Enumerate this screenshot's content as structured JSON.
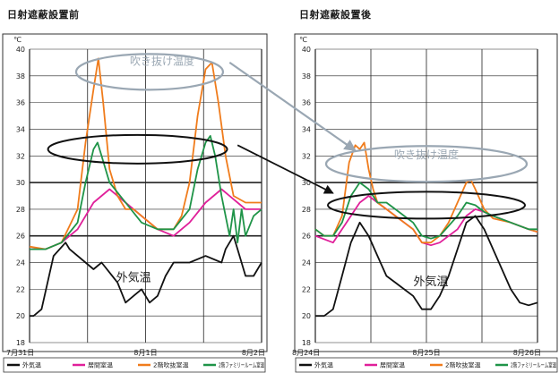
{
  "chart_data": [
    {
      "type": "line",
      "title": "日射遮蔽設置前",
      "y_unit": "℃",
      "ylim": [
        18,
        40
      ],
      "y_ticks": [
        "40",
        "38",
        "36",
        "34",
        "32",
        "30",
        "28",
        "26",
        "24",
        "22",
        "20",
        "18"
      ],
      "x_ticks": [
        "7月31日",
        "8月1日",
        "8月2日"
      ],
      "series": [
        {
          "name": "外気温",
          "color": "#111111",
          "points": [
            [
              0,
              20
            ],
            [
              0.5,
              20
            ],
            [
              1.5,
              20.5
            ],
            [
              3,
              24.5
            ],
            [
              4.5,
              25.5
            ],
            [
              5,
              25
            ],
            [
              7,
              24
            ],
            [
              8,
              23.5
            ],
            [
              9,
              24
            ],
            [
              11,
              22.5
            ],
            [
              12,
              21
            ],
            [
              13,
              21.5
            ],
            [
              14,
              22
            ],
            [
              15,
              21
            ],
            [
              16,
              21.5
            ],
            [
              17,
              23
            ],
            [
              18,
              24
            ],
            [
              20,
              24
            ],
            [
              22,
              24.5
            ],
            [
              24,
              24
            ],
            [
              24.5,
              25
            ],
            [
              25.5,
              26
            ],
            [
              26,
              25
            ],
            [
              27,
              23
            ],
            [
              28,
              23
            ],
            [
              29,
              24
            ]
          ]
        },
        {
          "name": "居間室温",
          "color": "#e0209a",
          "points": [
            [
              0,
              25
            ],
            [
              2,
              25
            ],
            [
              4,
              25.5
            ],
            [
              6,
              26.5
            ],
            [
              8,
              28.5
            ],
            [
              10,
              29.5
            ],
            [
              12,
              28.5
            ],
            [
              14,
              27.5
            ],
            [
              16,
              26.5
            ],
            [
              18,
              26
            ],
            [
              20,
              27
            ],
            [
              22,
              28.5
            ],
            [
              24,
              29.5
            ],
            [
              26,
              28.5
            ],
            [
              27,
              28
            ],
            [
              29,
              28
            ]
          ]
        },
        {
          "name": "2階吹抜室温",
          "color": "#f07c1c",
          "points": [
            [
              0,
              25.2
            ],
            [
              2,
              25
            ],
            [
              4,
              25.5
            ],
            [
              6,
              28
            ],
            [
              7,
              33
            ],
            [
              8,
              37
            ],
            [
              8.6,
              39.3
            ],
            [
              9.2,
              36
            ],
            [
              10,
              31
            ],
            [
              11,
              29
            ],
            [
              12,
              28
            ],
            [
              13,
              28
            ],
            [
              14,
              27.5
            ],
            [
              16,
              26.5
            ],
            [
              18,
              26.5
            ],
            [
              19,
              27.5
            ],
            [
              20,
              30
            ],
            [
              21,
              35
            ],
            [
              22,
              38.5
            ],
            [
              22.8,
              39
            ],
            [
              23.6,
              36
            ],
            [
              24.5,
              32
            ],
            [
              25.5,
              29
            ],
            [
              27,
              28.5
            ],
            [
              29,
              28.5
            ]
          ]
        },
        {
          "name": "2階ファミリールーム室温",
          "color": "#1f9448",
          "points": [
            [
              0,
              25
            ],
            [
              2,
              25
            ],
            [
              4,
              25.5
            ],
            [
              6,
              27
            ],
            [
              7,
              30
            ],
            [
              8,
              32.5
            ],
            [
              8.5,
              33
            ],
            [
              9,
              32
            ],
            [
              10,
              30
            ],
            [
              12,
              28.5
            ],
            [
              14,
              27
            ],
            [
              16,
              26.5
            ],
            [
              18,
              26.5
            ],
            [
              20,
              28
            ],
            [
              21,
              31
            ],
            [
              22,
              33
            ],
            [
              22.6,
              33.5
            ],
            [
              23.2,
              32
            ],
            [
              24,
              29
            ],
            [
              25,
              26
            ],
            [
              25.5,
              28
            ],
            [
              26,
              25.5
            ],
            [
              26.5,
              28
            ],
            [
              27,
              26
            ],
            [
              28,
              27.5
            ],
            [
              29,
              28
            ]
          ]
        }
      ],
      "annotations": [
        {
          "text": "吹き抜け温度",
          "color": "#9aa7b3",
          "style": "ellipse"
        }
      ]
    },
    {
      "type": "line",
      "title": "日射遮蔽設置後",
      "y_unit": "℃",
      "ylim": [
        18,
        40
      ],
      "y_ticks": [
        "40",
        "38",
        "36",
        "34",
        "32",
        "30",
        "28",
        "26",
        "24",
        "22",
        "20",
        "18"
      ],
      "x_ticks": [
        "8月24日",
        "8月25日",
        "8月26日"
      ],
      "series": [
        {
          "name": "外気温",
          "color": "#111111",
          "points": [
            [
              0,
              20
            ],
            [
              1,
              20
            ],
            [
              2,
              20.5
            ],
            [
              3,
              23
            ],
            [
              4,
              25.5
            ],
            [
              5,
              27
            ],
            [
              6,
              26
            ],
            [
              7,
              24.5
            ],
            [
              8,
              23
            ],
            [
              9,
              22.5
            ],
            [
              10,
              22
            ],
            [
              11,
              21.5
            ],
            [
              12,
              20.5
            ],
            [
              13,
              20.5
            ],
            [
              14,
              21.5
            ],
            [
              15,
              23
            ],
            [
              16,
              25
            ],
            [
              17,
              27
            ],
            [
              18,
              27.5
            ],
            [
              19,
              26.5
            ],
            [
              20,
              25
            ],
            [
              21,
              23.5
            ],
            [
              22,
              22
            ],
            [
              23,
              21
            ],
            [
              24,
              20.8
            ],
            [
              25,
              21
            ]
          ]
        },
        {
          "name": "居間室温",
          "color": "#e0209a",
          "points": [
            [
              0,
              26
            ],
            [
              2,
              25.5
            ],
            [
              3,
              26.5
            ],
            [
              4,
              27.5
            ],
            [
              5,
              28.5
            ],
            [
              6,
              29
            ],
            [
              7,
              28.5
            ],
            [
              8,
              28
            ],
            [
              9,
              27.5
            ],
            [
              10,
              27
            ],
            [
              11,
              26.5
            ],
            [
              12,
              25.5
            ],
            [
              13,
              25.3
            ],
            [
              14,
              25.5
            ],
            [
              16,
              26.5
            ],
            [
              17,
              27.5
            ],
            [
              18,
              28
            ],
            [
              19,
              27.8
            ],
            [
              20,
              27.5
            ],
            [
              22,
              27
            ],
            [
              24,
              26.5
            ],
            [
              25,
              26.3
            ]
          ]
        },
        {
          "name": "2階吹抜室温",
          "color": "#f07c1c",
          "points": [
            [
              0,
              26.5
            ],
            [
              1,
              26
            ],
            [
              2,
              26
            ],
            [
              3,
              27.5
            ],
            [
              3.8,
              31.5
            ],
            [
              4.5,
              32.8
            ],
            [
              5,
              32.5
            ],
            [
              5.5,
              33
            ],
            [
              6,
              31
            ],
            [
              6.5,
              29.5
            ],
            [
              7,
              28.5
            ],
            [
              8,
              28
            ],
            [
              9,
              27.5
            ],
            [
              10,
              27
            ],
            [
              11,
              26.5
            ],
            [
              12,
              25.5
            ],
            [
              13,
              25.5
            ],
            [
              14,
              26
            ],
            [
              15,
              27
            ],
            [
              16,
              28.5
            ],
            [
              17,
              30
            ],
            [
              17.5,
              30.2
            ],
            [
              18,
              29.5
            ],
            [
              19,
              28
            ],
            [
              20,
              27.3
            ],
            [
              22,
              27
            ],
            [
              24,
              26.5
            ],
            [
              25,
              26.3
            ]
          ]
        },
        {
          "name": "2階ファミリールーム室温",
          "color": "#1f9448",
          "points": [
            [
              0,
              26.5
            ],
            [
              1,
              26
            ],
            [
              2,
              26
            ],
            [
              3,
              27
            ],
            [
              4,
              29
            ],
            [
              5,
              30
            ],
            [
              6,
              29.5
            ],
            [
              7,
              28.5
            ],
            [
              8,
              28.5
            ],
            [
              9,
              28
            ],
            [
              10,
              27.5
            ],
            [
              11,
              27
            ],
            [
              12,
              26
            ],
            [
              13,
              25.8
            ],
            [
              14,
              26
            ],
            [
              16,
              27.5
            ],
            [
              17,
              28.5
            ],
            [
              18,
              28.3
            ],
            [
              19,
              27.8
            ],
            [
              20,
              27.5
            ],
            [
              22,
              27
            ],
            [
              24,
              26.5
            ],
            [
              25,
              26.5
            ]
          ]
        }
      ],
      "annotations": [
        {
          "text": "吹き抜け温度",
          "color": "#9aa7b3",
          "style": "ellipse"
        }
      ]
    }
  ],
  "outdoor_label": "外気温",
  "legend_labels": [
    "外気温",
    "居間室温",
    "2階吹抜室温",
    "2階ファミリールーム室温"
  ]
}
